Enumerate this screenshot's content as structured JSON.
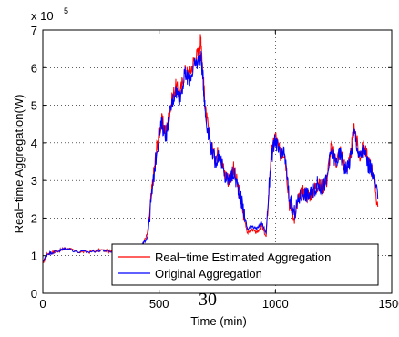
{
  "page_number": "30",
  "chart_data": {
    "type": "line",
    "title": "",
    "xlabel": "Time (min)",
    "ylabel": "Real−time Aggregation(W)",
    "xlim": [
      0,
      1500
    ],
    "ylim": [
      0,
      7
    ],
    "y_multiplier_label": "x 10",
    "y_multiplier_exponent": "5",
    "y_multiplier": 100000,
    "x_ticks": [
      0,
      500,
      1000,
      1500
    ],
    "x_tick_labels": [
      "0",
      "500",
      "1000",
      "1500"
    ],
    "y_ticks": [
      0,
      1,
      2,
      3,
      4,
      5,
      6,
      7
    ],
    "y_tick_labels": [
      "0",
      "1",
      "2",
      "3",
      "4",
      "5",
      "6",
      "7"
    ],
    "grid": true,
    "legend_placement": "bottom-right",
    "series": [
      {
        "name": "Real−time Estimated Aggregation",
        "color": "#ff0000",
        "x": [
          0,
          20,
          50,
          80,
          100,
          150,
          200,
          250,
          300,
          350,
          400,
          430,
          450,
          470,
          490,
          510,
          530,
          550,
          570,
          590,
          610,
          630,
          650,
          670,
          680,
          690,
          700,
          720,
          740,
          760,
          780,
          800,
          820,
          840,
          860,
          880,
          900,
          920,
          940,
          960,
          980,
          1000,
          1020,
          1040,
          1060,
          1080,
          1100,
          1120,
          1140,
          1160,
          1180,
          1200,
          1220,
          1240,
          1260,
          1280,
          1300,
          1320,
          1340,
          1360,
          1380,
          1400,
          1420,
          1440
        ],
        "y": [
          0.8,
          1.05,
          1.1,
          1.15,
          1.2,
          1.1,
          1.1,
          1.15,
          1.1,
          1.15,
          1.2,
          1.3,
          1.6,
          2.8,
          3.9,
          4.6,
          4.3,
          5.0,
          5.5,
          5.3,
          5.9,
          5.8,
          6.2,
          6.4,
          6.8,
          5.7,
          4.8,
          4.0,
          3.6,
          3.8,
          3.2,
          3.0,
          3.3,
          2.8,
          2.2,
          1.6,
          1.7,
          1.6,
          1.8,
          1.5,
          3.6,
          4.2,
          3.7,
          3.8,
          2.4,
          2.0,
          2.5,
          2.7,
          2.6,
          2.7,
          2.9,
          2.8,
          3.0,
          3.9,
          3.5,
          3.8,
          3.3,
          3.5,
          4.5,
          3.6,
          3.9,
          3.5,
          3.2,
          2.3
        ]
      },
      {
        "name": "Original Aggregation",
        "color": "#0000ff",
        "x": [
          0,
          20,
          50,
          80,
          100,
          150,
          200,
          250,
          300,
          350,
          400,
          430,
          450,
          470,
          490,
          510,
          530,
          550,
          570,
          590,
          610,
          630,
          650,
          670,
          680,
          690,
          700,
          720,
          740,
          760,
          780,
          800,
          820,
          840,
          860,
          880,
          900,
          920,
          940,
          960,
          980,
          1000,
          1020,
          1040,
          1060,
          1080,
          1100,
          1120,
          1140,
          1160,
          1180,
          1200,
          1220,
          1240,
          1260,
          1280,
          1300,
          1320,
          1340,
          1360,
          1380,
          1400,
          1420,
          1440
        ],
        "y": [
          0.85,
          1.05,
          1.1,
          1.15,
          1.2,
          1.1,
          1.1,
          1.15,
          1.1,
          1.15,
          1.2,
          1.3,
          1.5,
          2.7,
          3.8,
          4.5,
          4.2,
          4.9,
          5.4,
          5.2,
          5.8,
          5.7,
          6.0,
          6.2,
          6.3,
          5.6,
          4.7,
          4.0,
          3.5,
          3.7,
          3.1,
          3.0,
          3.2,
          2.8,
          2.3,
          1.7,
          1.8,
          1.7,
          1.9,
          1.6,
          3.5,
          4.1,
          3.6,
          3.7,
          2.5,
          2.1,
          2.5,
          2.7,
          2.6,
          2.7,
          2.9,
          2.8,
          3.0,
          3.8,
          3.5,
          3.7,
          3.3,
          3.5,
          4.3,
          3.6,
          3.8,
          3.4,
          3.2,
          2.5
        ]
      }
    ]
  }
}
